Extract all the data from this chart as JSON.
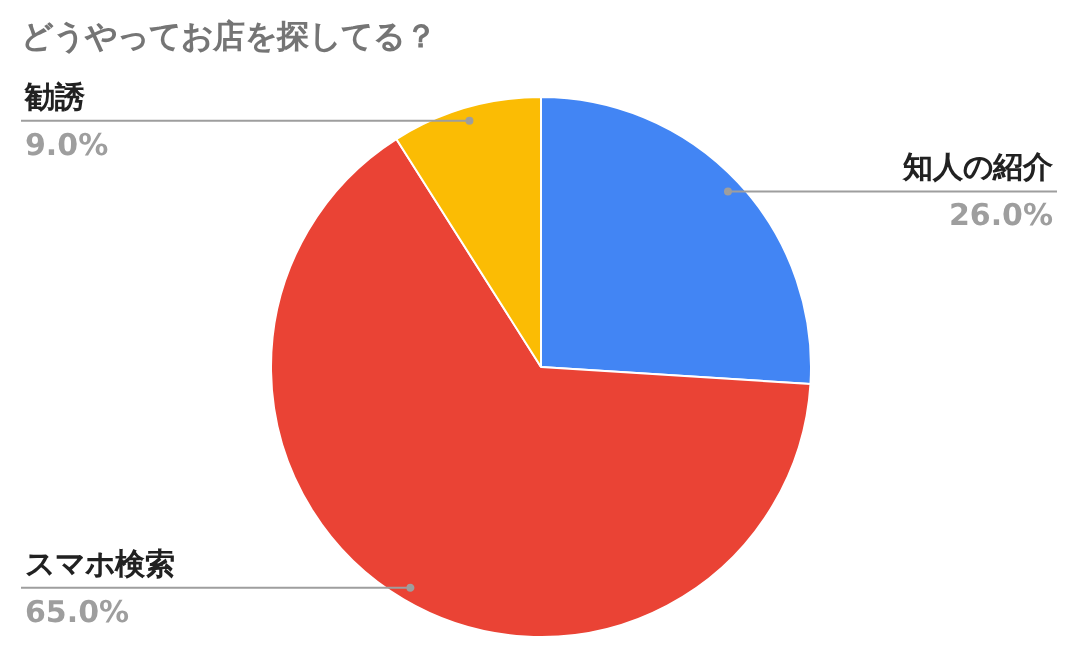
{
  "chart_data": {
    "type": "pie",
    "title": "どうやってお店を探してる？",
    "categories": [
      "知人の紹介",
      "スマホ検索",
      "勧誘"
    ],
    "values": [
      26,
      65,
      9
    ],
    "colors": [
      "#4285f4",
      "#ea4335",
      "#fbbc04"
    ],
    "value_labels": [
      "26.0%",
      "65.0%",
      "9.0%"
    ],
    "legend": false
  }
}
